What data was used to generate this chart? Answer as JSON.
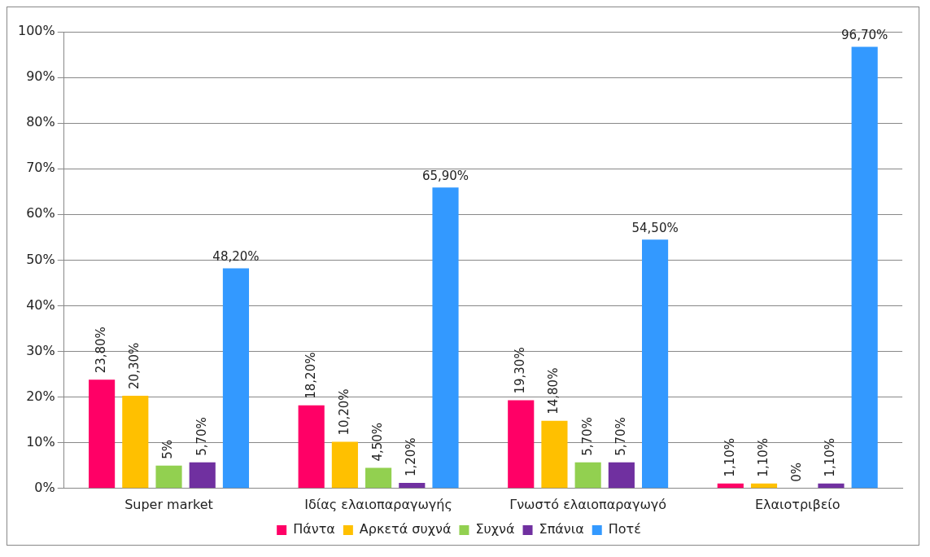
{
  "chart_data": {
    "type": "bar",
    "categories": [
      "Super market",
      "Ιδίας ελαιοπαραγωγής",
      "Γνωστό ελαιοπαραγωγό",
      "Ελαιοτριβείο"
    ],
    "series": [
      {
        "name": "Πάντα",
        "color": "#ff0066",
        "values": [
          23.8,
          18.2,
          19.3,
          1.1
        ],
        "value_labels": [
          "23,80%",
          "18,20%",
          "19,30%",
          "1,10%"
        ]
      },
      {
        "name": "Αρκετά συχνά",
        "color": "#ffc000",
        "values": [
          20.3,
          10.2,
          14.8,
          1.1
        ],
        "value_labels": [
          "20,30%",
          "10,20%",
          "14,80%",
          "1,10%"
        ]
      },
      {
        "name": "Συχνά",
        "color": "#92d050",
        "values": [
          5,
          4.5,
          5.7,
          0
        ],
        "value_labels": [
          "5%",
          "4,50%",
          "5,70%",
          "0%"
        ]
      },
      {
        "name": "Σπάνια",
        "color": "#7030a0",
        "values": [
          5.7,
          1.2,
          5.7,
          1.1
        ],
        "value_labels": [
          "5,70%",
          "1,20%",
          "5,70%",
          "1,10%"
        ]
      },
      {
        "name": "Ποτέ",
        "color": "#3399ff",
        "values": [
          48.2,
          65.9,
          54.5,
          96.7
        ],
        "value_labels": [
          "48,20%",
          "65,90%",
          "54,50%",
          "96,70%"
        ]
      }
    ],
    "ylim": [
      0,
      100
    ],
    "yticks": [
      {
        "value": 0,
        "label": "0%"
      },
      {
        "value": 10,
        "label": "10%"
      },
      {
        "value": 20,
        "label": "20%"
      },
      {
        "value": 30,
        "label": "30%"
      },
      {
        "value": 40,
        "label": "40%"
      },
      {
        "value": 50,
        "label": "50%"
      },
      {
        "value": 60,
        "label": "60%"
      },
      {
        "value": 70,
        "label": "70%"
      },
      {
        "value": 80,
        "label": "80%"
      },
      {
        "value": 90,
        "label": "90%"
      },
      {
        "value": 100,
        "label": "100%"
      }
    ],
    "grid": "y",
    "legend": "bottom"
  }
}
